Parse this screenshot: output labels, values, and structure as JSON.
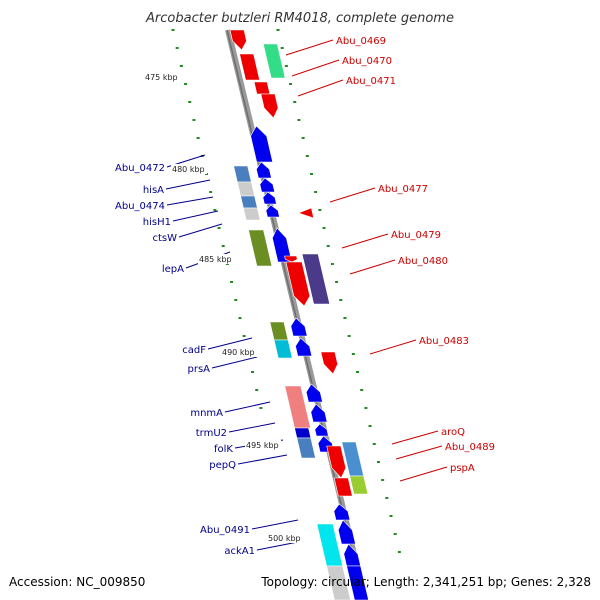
{
  "title": "Arcobacter butzleri RM4018, complete genome",
  "footer": {
    "accession": "Accession: NC_009850",
    "summary": "Topology: circular; Length: 2,341,251 bp; Genes: 2,328"
  },
  "colors": {
    "forward": "#0000ee",
    "reverse": "#ee0000",
    "backbone": "#888888",
    "ticks": "#228B22",
    "label_left": "#00008b",
    "label_right": "#cc0000"
  },
  "kbp_marks": [
    {
      "label": "475 kbp",
      "kbp": 475
    },
    {
      "label": "480 kbp",
      "kbp": 480
    },
    {
      "label": "485 kbp",
      "kbp": 485
    },
    {
      "label": "490 kbp",
      "kbp": 490
    },
    {
      "label": "495 kbp",
      "kbp": 495
    },
    {
      "label": "500 kbp",
      "kbp": 500
    }
  ],
  "genes_right": [
    {
      "name": "Abu_0469"
    },
    {
      "name": "Abu_0470"
    },
    {
      "name": "Abu_0471"
    },
    {
      "name": "Abu_0477"
    },
    {
      "name": "Abu_0479"
    },
    {
      "name": "Abu_0480"
    },
    {
      "name": "Abu_0483"
    },
    {
      "name": "aroQ"
    },
    {
      "name": "Abu_0489"
    },
    {
      "name": "pspA"
    }
  ],
  "genes_left": [
    {
      "name": "Abu_0472"
    },
    {
      "name": "hisA"
    },
    {
      "name": "Abu_0474"
    },
    {
      "name": "hisH1"
    },
    {
      "name": "ctsW"
    },
    {
      "name": "lepA"
    },
    {
      "name": "cadF"
    },
    {
      "name": "prsA"
    },
    {
      "name": "mnmA"
    },
    {
      "name": "trmU2"
    },
    {
      "name": "folK"
    },
    {
      "name": "pepQ"
    },
    {
      "name": "Abu_0491"
    },
    {
      "name": "ackA1"
    }
  ]
}
